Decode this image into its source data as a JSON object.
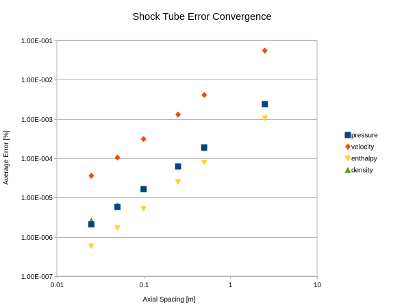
{
  "chart_data": {
    "type": "scatter",
    "title": "Shock Tube Error Convergence",
    "xlabel": "Axial Spacing [m]",
    "ylabel": "Average Error [%]",
    "x_scale": "log",
    "y_scale": "log",
    "xlim": [
      0.01,
      10
    ],
    "ylim": [
      1e-07,
      0.1
    ],
    "x_ticks": [
      {
        "value": 0.01,
        "label": "0.01"
      },
      {
        "value": 0.1,
        "label": "0.1"
      },
      {
        "value": 1,
        "label": "1"
      },
      {
        "value": 10,
        "label": "10"
      }
    ],
    "y_ticks": [
      {
        "value": 1e-07,
        "label": "1.00E-007"
      },
      {
        "value": 1e-06,
        "label": "1.00E-006"
      },
      {
        "value": 1e-05,
        "label": "1.00E-005"
      },
      {
        "value": 0.0001,
        "label": "1.00E-004"
      },
      {
        "value": 0.001,
        "label": "1.00E-003"
      },
      {
        "value": 0.01,
        "label": "1.00E-002"
      },
      {
        "value": 0.1,
        "label": "1.00E-001"
      }
    ],
    "grid": "horizontal",
    "legend_position": "right",
    "series": [
      {
        "name": "pressure",
        "marker": "square",
        "color": "#004586",
        "x": [
          0.025,
          0.05,
          0.1,
          0.25,
          0.5,
          2.5
        ],
        "y": [
          2.1e-06,
          5.8e-06,
          1.65e-05,
          6.2e-05,
          0.00019,
          0.0024
        ]
      },
      {
        "name": "velocity",
        "marker": "diamond",
        "color": "#ff420e",
        "x": [
          0.025,
          0.05,
          0.1,
          0.25,
          0.5,
          2.5
        ],
        "y": [
          3.6e-05,
          0.000105,
          0.00031,
          0.0013,
          0.0041,
          0.055
        ]
      },
      {
        "name": "enthalpy",
        "marker": "triangle-down",
        "color": "#ffd320",
        "x": [
          0.025,
          0.05,
          0.1,
          0.25,
          0.5,
          2.5
        ],
        "y": [
          5.8e-07,
          1.7e-06,
          5.2e-06,
          2.5e-05,
          7.8e-05,
          0.00105
        ]
      },
      {
        "name": "density",
        "marker": "triangle-up",
        "color": "#579d1c",
        "x": [
          0.025,
          0.05,
          0.1,
          0.25,
          0.5,
          2.5
        ],
        "y": [
          2.6e-06,
          6.3e-06,
          1.7e-05,
          6.4e-05,
          0.00018,
          0.0024
        ]
      }
    ]
  }
}
